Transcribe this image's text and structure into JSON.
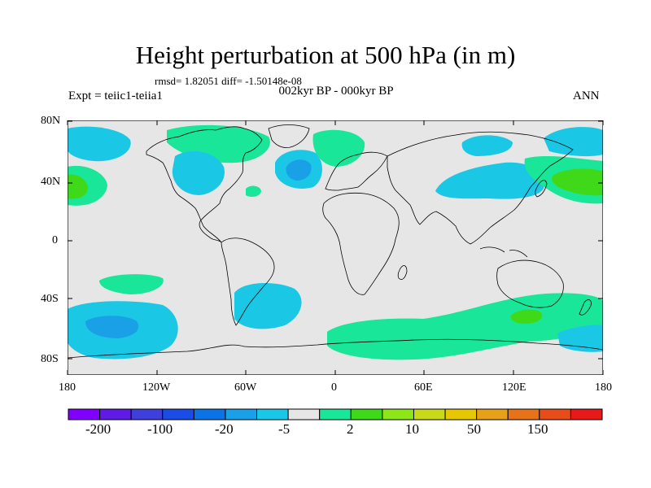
{
  "title": "Height perturbation at 500 hPa (in m)",
  "rmsd_line": "rmsd= 1.82051 diff= -1.50148e-08",
  "period": "002kyr BP - 000kyr BP",
  "expt": "Expt = teiic1-teiia1",
  "season": "ANN",
  "axes": {
    "y_ticks": [
      "80N",
      "40N",
      "0",
      "40S",
      "80S"
    ],
    "x_ticks": [
      "180",
      "120W",
      "60W",
      "0",
      "60E",
      "120E",
      "180"
    ]
  },
  "colorbar": {
    "colors": [
      "#7f00ff",
      "#5f1ae6",
      "#3f3fd9",
      "#1a4de6",
      "#0a73e6",
      "#1aa0e6",
      "#1ac8e6",
      "#e6e6e6",
      "#1ae699",
      "#40d91a",
      "#8ce61a",
      "#c8d91a",
      "#e6c800",
      "#e6a01a",
      "#e6731a",
      "#e64d1a",
      "#e61a1a"
    ],
    "labels": [
      "-200",
      "-100",
      "-20",
      "-5",
      "2",
      "10",
      "50",
      "150"
    ]
  },
  "map_colors": {
    "ocean_bg": "#e6e6e6",
    "light_blue": "#1ac8e6",
    "mid_blue": "#1aa0e6",
    "light_green": "#1ae699",
    "mid_green": "#40d91a",
    "coast": "#000000"
  }
}
